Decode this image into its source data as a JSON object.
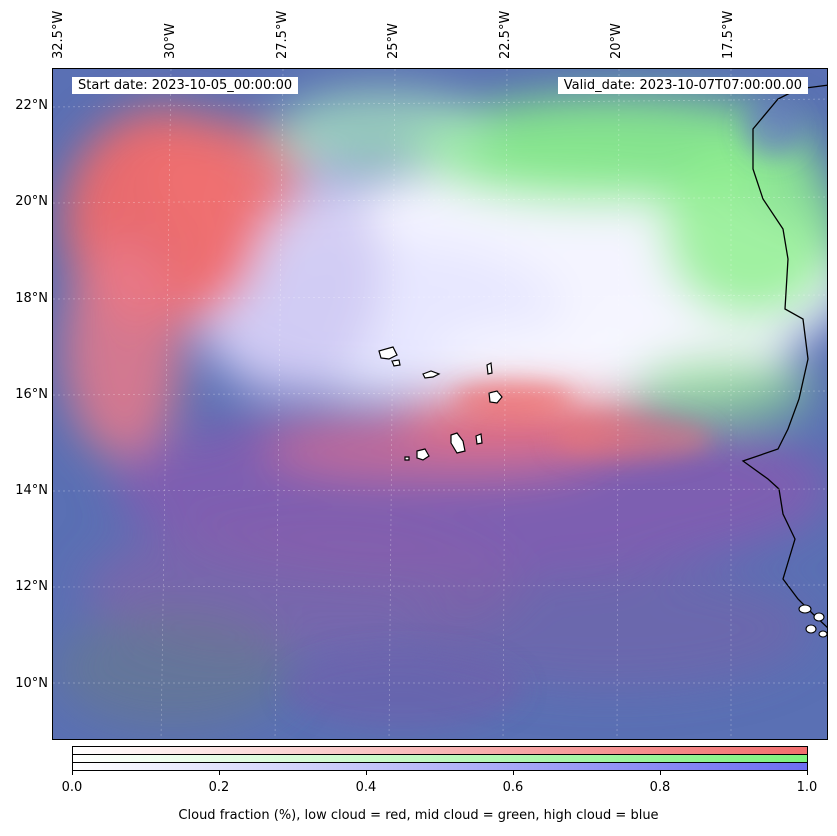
{
  "map": {
    "start_label": "Start date: 2023-10-05_00:00:00",
    "valid_label": "Valid_date: 2023-10-07T07:00:00.00",
    "lon_ticks": [
      "32.5°W",
      "30°W",
      "27.5°W",
      "25°W",
      "22.5°W",
      "20°W",
      "17.5°W"
    ],
    "lat_ticks": [
      "22°N",
      "20°N",
      "18°N",
      "16°N",
      "14°N",
      "12°N",
      "10°N"
    ],
    "colors": {
      "low_cloud": "#f26d6d",
      "mid_cloud": "#7df27d",
      "high_cloud": "#6d6df2",
      "coastline": "#000000",
      "background": "#4f6fae"
    }
  },
  "colorbar": {
    "ticks": [
      "0.0",
      "0.2",
      "0.4",
      "0.6",
      "0.8",
      "1.0"
    ],
    "title": "Cloud fraction (%), low cloud = red, mid cloud = green, high cloud = blue",
    "colors": [
      "#f26d6d",
      "#7df27d",
      "#6d6df2"
    ]
  }
}
